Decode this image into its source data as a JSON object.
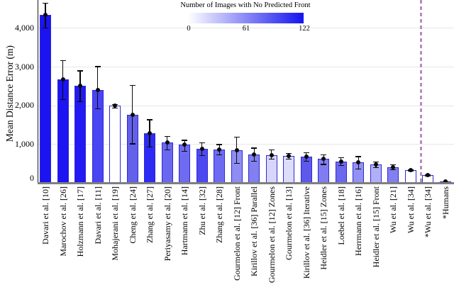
{
  "colorbar": {
    "title": "Number of Images with No Predicted Front",
    "ticks": [
      "0",
      "61",
      "122"
    ],
    "gradient_start": "#ffffff",
    "gradient_end": "#1414ee"
  },
  "chart_data": {
    "type": "bar",
    "title": "",
    "xlabel": "",
    "ylabel": "Mean Distance Error (m)",
    "ylim": [
      0,
      4712
    ],
    "ytick_values": [
      0,
      1000,
      2000,
      3000,
      4000
    ],
    "ytick_labels": [
      "0",
      "1,000",
      "2,000",
      "3,000",
      "4,000"
    ],
    "grid": "horizontal-light",
    "legend_position": "top-center-colorbar",
    "colorbar_range": [
      0,
      122
    ],
    "categories": [
      "Davari et al. [10]",
      "Marochov et al. [26]",
      "Holzmann et al. [17]",
      "Davari et al. [11]",
      "Mohajerani et al. [19]",
      "Cheng et al. [24]",
      "Zhang et al. [27]",
      "Periyasamy et al. [20]",
      "Hartmann et al. [14]",
      "Zhu et al. [32]",
      "Zhang et al. [28]",
      "Gourmelon et al. [12] Front",
      "Kirillov et al. [36] Parallel",
      "Gourmelon et al. [12] Zones",
      "Gourmelon et al. [13]",
      "Kirillov et al. [36] Iterative",
      "Heidler et al. [15] Zones",
      "Loebel et al. [18]",
      "Herrmann et al. [16]",
      "Heidler et al. [15] Front",
      "Wu et al. [21]",
      "Wu et al. [34]",
      "*Wu et al. [34]",
      "*Humans"
    ],
    "values": [
      4330,
      2670,
      2500,
      2390,
      1990,
      1750,
      1280,
      1040,
      990,
      880,
      860,
      840,
      730,
      710,
      690,
      680,
      620,
      550,
      530,
      480,
      400,
      330,
      200,
      30
    ],
    "error_high": [
      4640,
      3160,
      2900,
      3010,
      2030,
      2520,
      1640,
      1210,
      1110,
      1040,
      1000,
      1190,
      910,
      860,
      770,
      790,
      730,
      660,
      690,
      550,
      480,
      350,
      220,
      45
    ],
    "error_low": [
      4000,
      2160,
      2100,
      1920,
      1940,
      1020,
      930,
      860,
      820,
      710,
      730,
      510,
      570,
      620,
      620,
      570,
      490,
      460,
      370,
      400,
      350,
      310,
      180,
      15
    ],
    "bar_colors": [
      "#1c13f1",
      "#1d14f2",
      "#2319f2",
      "#4a44f3",
      "#ffffff",
      "#6360ea",
      "#2e2af5",
      "#6b68f0",
      "#6e6bf0",
      "#4d49f1",
      "#6e6bf2",
      "#8f8df3",
      "#8280f0",
      "#d7d6fa",
      "#dcdcfb",
      "#5d59eb",
      "#807df0",
      "#6b68ee",
      "#9391f3",
      "#b1b0f6",
      "#8280f0",
      "#ffffff",
      "#ffffff",
      "#fbfbfe"
    ],
    "bar_edge_color": "#2d2ad2",
    "error_bar_color": "#0a0a0a",
    "mean_marker": "black-dot",
    "divider_line": {
      "style": "dashed",
      "color": "#b78cc2",
      "between_categories": [
        "Wu et al. [34]",
        "*Wu et al. [34]"
      ]
    }
  }
}
